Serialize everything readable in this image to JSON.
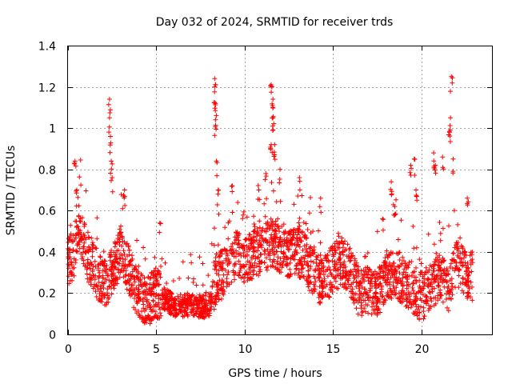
{
  "chart_data": {
    "type": "scatter",
    "title": "Day 032 of 2024, SRMTID for receiver trds",
    "xlabel": "GPS time / hours",
    "ylabel": "SRMTID / TECUs",
    "xlim": [
      0,
      24
    ],
    "ylim": [
      0,
      1.4
    ],
    "xticks": [
      0,
      5,
      10,
      15,
      20
    ],
    "xtick_labels": [
      "0",
      "5",
      "10",
      "15",
      "20"
    ],
    "yticks": [
      0,
      0.2,
      0.4,
      0.6,
      0.8,
      1.0,
      1.2,
      1.4
    ],
    "ytick_labels": [
      "0",
      "0.2",
      "0.4",
      "0.6",
      "0.8",
      "1",
      "1.2",
      "1.4"
    ],
    "grid": true,
    "marker": "+",
    "series": [
      {
        "name": "SRMTID",
        "color": "#ff0000",
        "baseline": [
          [
            0,
            0.36
          ],
          [
            0.3,
            0.38
          ],
          [
            0.6,
            0.52
          ],
          [
            1.0,
            0.4
          ],
          [
            1.5,
            0.32
          ],
          [
            2.0,
            0.24
          ],
          [
            2.5,
            0.3
          ],
          [
            3.0,
            0.4
          ],
          [
            3.5,
            0.3
          ],
          [
            4.0,
            0.18
          ],
          [
            4.5,
            0.16
          ],
          [
            5.0,
            0.2
          ],
          [
            5.5,
            0.17
          ],
          [
            6.0,
            0.14
          ],
          [
            7.0,
            0.14
          ],
          [
            7.5,
            0.13
          ],
          [
            8.0,
            0.14
          ],
          [
            8.4,
            0.28
          ],
          [
            9.0,
            0.3
          ],
          [
            9.5,
            0.38
          ],
          [
            10.0,
            0.36
          ],
          [
            10.5,
            0.38
          ],
          [
            11.0,
            0.42
          ],
          [
            11.5,
            0.44
          ],
          [
            12.0,
            0.42
          ],
          [
            12.5,
            0.38
          ],
          [
            13.0,
            0.4
          ],
          [
            13.5,
            0.36
          ],
          [
            14.0,
            0.28
          ],
          [
            14.5,
            0.26
          ],
          [
            15.0,
            0.32
          ],
          [
            15.5,
            0.36
          ],
          [
            16.0,
            0.3
          ],
          [
            16.5,
            0.2
          ],
          [
            17.0,
            0.22
          ],
          [
            17.5,
            0.2
          ],
          [
            18.0,
            0.26
          ],
          [
            18.5,
            0.3
          ],
          [
            19.0,
            0.26
          ],
          [
            19.5,
            0.22
          ],
          [
            20.0,
            0.18
          ],
          [
            20.5,
            0.24
          ],
          [
            21.0,
            0.28
          ],
          [
            21.5,
            0.22
          ],
          [
            22.0,
            0.34
          ],
          [
            22.5,
            0.3
          ],
          [
            22.8,
            0.28
          ]
        ],
        "spikes": [
          [
            0.4,
            0.84
          ],
          [
            0.5,
            0.7
          ],
          [
            2.35,
            1.14
          ],
          [
            2.35,
            1.05
          ],
          [
            2.4,
            0.96
          ],
          [
            2.45,
            0.84
          ],
          [
            2.5,
            0.76
          ],
          [
            3.2,
            0.7
          ],
          [
            5.2,
            0.54
          ],
          [
            8.3,
            1.24
          ],
          [
            8.3,
            1.2
          ],
          [
            8.35,
            1.12
          ],
          [
            8.35,
            1.04
          ],
          [
            8.4,
            0.84
          ],
          [
            8.5,
            0.7
          ],
          [
            9.3,
            0.72
          ],
          [
            10.8,
            0.7
          ],
          [
            11.5,
            1.21
          ],
          [
            11.6,
            1.14
          ],
          [
            11.6,
            1.1
          ],
          [
            11.6,
            1.05
          ],
          [
            11.5,
            0.92
          ],
          [
            11.7,
            0.92
          ],
          [
            12.0,
            0.8
          ],
          [
            11.2,
            0.78
          ],
          [
            13.1,
            0.76
          ],
          [
            14.3,
            0.66
          ],
          [
            17.8,
            0.56
          ],
          [
            18.3,
            0.74
          ],
          [
            18.5,
            0.62
          ],
          [
            19.4,
            0.82
          ],
          [
            19.6,
            0.85
          ],
          [
            19.7,
            0.7
          ],
          [
            20.7,
            0.88
          ],
          [
            20.8,
            0.82
          ],
          [
            21.2,
            0.86
          ],
          [
            21.6,
            0.98
          ],
          [
            21.65,
            1.05
          ],
          [
            21.7,
            1.25
          ],
          [
            21.8,
            0.85
          ],
          [
            22.6,
            0.66
          ]
        ],
        "spread": 0.12,
        "points_per_hour": 110,
        "range_x": [
          0,
          22.9
        ]
      }
    ]
  }
}
